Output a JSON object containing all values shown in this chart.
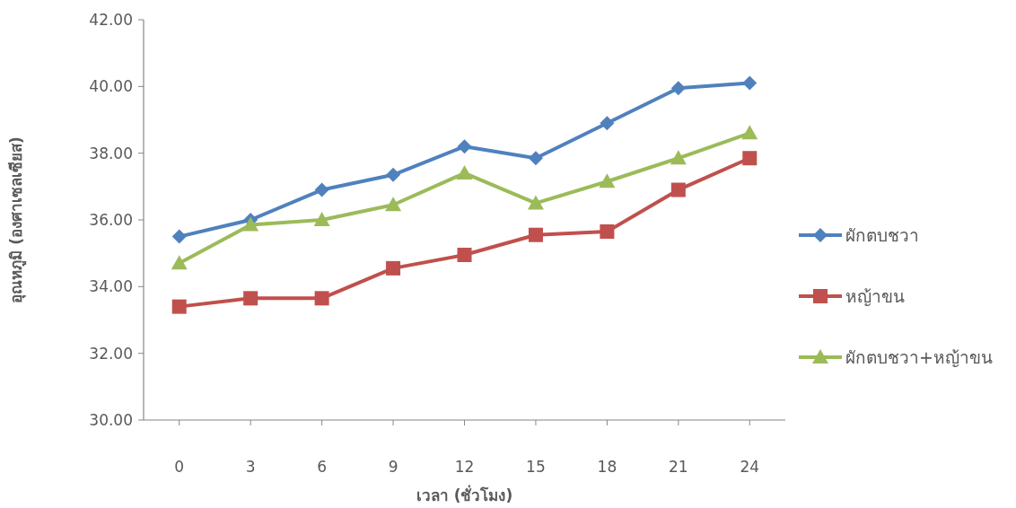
{
  "chart_data": {
    "type": "line",
    "xlabel": "เวลา (ชั่วโมง)",
    "ylabel": "อุณหภูมิ (องศาเซลเซียส)",
    "x": [
      0,
      3,
      6,
      9,
      12,
      15,
      18,
      21,
      24
    ],
    "series": [
      {
        "name": "ผักตบชวา",
        "color": "#4f81bd",
        "marker": "diamond",
        "values": [
          35.5,
          36.0,
          36.9,
          37.35,
          38.2,
          37.85,
          38.9,
          39.95,
          40.1
        ]
      },
      {
        "name": "หญ้าขน",
        "color": "#c0504d",
        "marker": "square",
        "values": [
          33.4,
          33.65,
          33.65,
          34.55,
          34.95,
          35.55,
          35.65,
          36.9,
          37.85
        ]
      },
      {
        "name": "ผักตบชวา+หญ้าขน",
        "color": "#9bbb59",
        "marker": "triangle",
        "values": [
          34.7,
          35.85,
          36.0,
          36.45,
          37.4,
          36.5,
          37.15,
          37.85,
          38.6
        ]
      }
    ],
    "ylim": [
      30,
      42
    ],
    "yticks": [
      {
        "value": 30,
        "label": "30.00"
      },
      {
        "value": 32,
        "label": "32.00"
      },
      {
        "value": 34,
        "label": "34.00"
      },
      {
        "value": 36,
        "label": "36.00"
      },
      {
        "value": 38,
        "label": "38.00"
      },
      {
        "value": 40,
        "label": "40.00"
      },
      {
        "value": 42,
        "label": "42.00"
      }
    ],
    "xlim": [
      -1.5,
      25.5
    ],
    "xticks": [
      0,
      3,
      6,
      9,
      12,
      15,
      18,
      21,
      24
    ],
    "legend": "right",
    "grid": false
  }
}
